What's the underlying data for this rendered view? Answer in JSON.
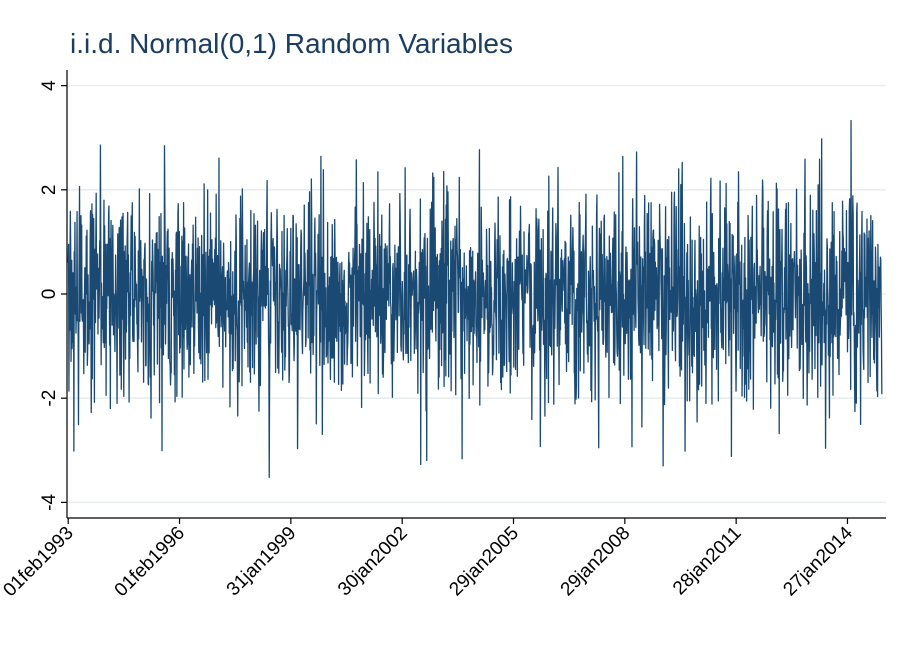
{
  "chart_data": {
    "type": "line",
    "title": "i.i.d. Normal(0,1) Random Variables",
    "xlabel": "",
    "ylabel": "",
    "x_range": [
      "1993-01-20",
      "2015-02-10"
    ],
    "x_ticks": [
      {
        "date": "1993-02-01",
        "label": "01feb1993"
      },
      {
        "date": "1996-02-01",
        "label": "01feb1996"
      },
      {
        "date": "1999-01-31",
        "label": "31jan1999"
      },
      {
        "date": "2002-01-30",
        "label": "30jan2002"
      },
      {
        "date": "2005-01-29",
        "label": "29jan2005"
      },
      {
        "date": "2008-01-29",
        "label": "29jan2008"
      },
      {
        "date": "2011-01-28",
        "label": "28jan2011"
      },
      {
        "date": "2014-01-27",
        "label": "27jan2014"
      }
    ],
    "ylim": [
      -4.3,
      4.3
    ],
    "y_ticks": [
      -4,
      -2,
      0,
      2,
      4
    ],
    "y_tick_labels": [
      "-4",
      "-2",
      "0",
      "2",
      "4"
    ],
    "grid": true,
    "legend": "none",
    "series": [
      {
        "x_start": "1993-02-01",
        "x_end": "2014-12-31",
        "distribution": "normal",
        "mean": 0,
        "sd": 1,
        "observed_max": 3.33,
        "observed_min": -3.52,
        "color": "#1a4a73"
      }
    ]
  }
}
